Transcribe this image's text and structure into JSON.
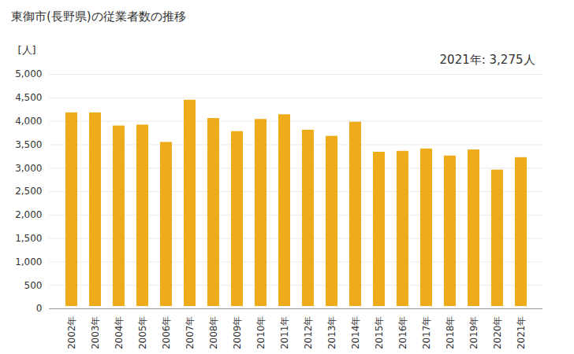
{
  "chart_data": {
    "type": "bar",
    "title": "東御市(長野県)の従業者数の推移",
    "y_label": "[人]",
    "annotation": "2021年: 3,275人",
    "categories": [
      "2002年",
      "2003年",
      "2004年",
      "2005年",
      "2006年",
      "2007年",
      "2008年",
      "2009年",
      "2010年",
      "2011年",
      "2012年",
      "2013年",
      "2014年",
      "2015年",
      "2016年",
      "2017年",
      "2018年",
      "2019年",
      "2020年",
      "2021年"
    ],
    "values": [
      4230,
      4230,
      3950,
      3970,
      3600,
      4500,
      4110,
      3830,
      4090,
      4190,
      3860,
      3730,
      4030,
      3390,
      3410,
      3460,
      3310,
      3440,
      3010,
      3275
    ],
    "color": "#eeac1a",
    "ylim": [
      0,
      5000
    ],
    "yticks": [
      0,
      500,
      {
        "value": 1000,
        "label": "1,000"
      },
      {
        "value": 1500,
        "label": "1,500"
      },
      {
        "value": 2000,
        "label": "2,000"
      },
      {
        "value": 2500,
        "label": "2,500"
      },
      {
        "value": 3000,
        "label": "3,000"
      },
      {
        "value": 3500,
        "label": "3,500"
      },
      {
        "value": 4000,
        "label": "4,000"
      },
      {
        "value": 4500,
        "label": "4,500"
      },
      {
        "value": 5000,
        "label": "5,000"
      }
    ],
    "grid": true
  }
}
